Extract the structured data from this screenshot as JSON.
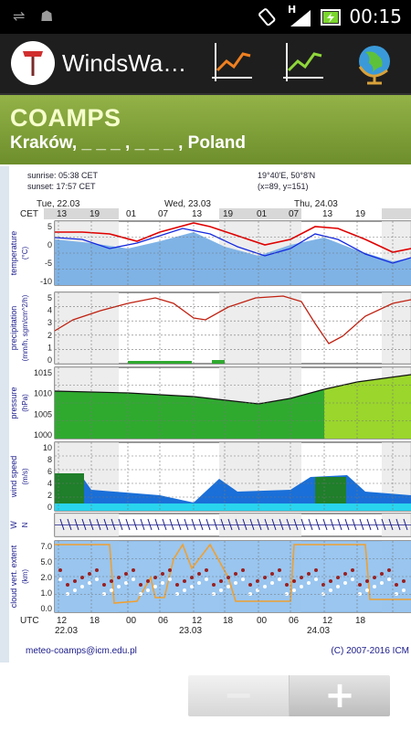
{
  "status_bar": {
    "time": "00:15",
    "network_label": "H"
  },
  "app_bar": {
    "title": "WindsWa…"
  },
  "header": {
    "model": "COAMPS",
    "location": "Kraków, _ _ _ , _ _ _ , Poland"
  },
  "meteogram": {
    "sunrise": "sunrise: 05:38 CET",
    "sunset": "sunset: 17:57 CET",
    "coords": "19°40'E, 50°8'N",
    "grid": "(x=89, y=151)",
    "days_top": [
      "Tue, 22.03",
      "Wed, 23.03",
      "Thu, 24.03"
    ],
    "cet_label": "CET",
    "hours_top": [
      "13",
      "19",
      "01",
      "07",
      "13",
      "19",
      "01",
      "07",
      "13",
      "19"
    ],
    "utc_label": "UTC",
    "hours_bottom": [
      "12",
      "18",
      "00",
      "06",
      "12",
      "18",
      "00",
      "06",
      "12",
      "18"
    ],
    "dates_bottom": [
      "22.03",
      "23.03",
      "24.03"
    ],
    "panels": [
      {
        "label1": "temperature",
        "label2": "(°C)",
        "ticks": [
          "5",
          "0",
          "-5",
          "-10"
        ]
      },
      {
        "label1": "precipitation",
        "label2": "(mm/h, sgm/cm^2/h)",
        "ticks": [
          "5",
          "4",
          "3",
          "2",
          "1",
          "0"
        ]
      },
      {
        "label1": "pressure",
        "label2": "(hPa)",
        "ticks": [
          "1015",
          "1010",
          "1005",
          "1000"
        ]
      },
      {
        "label1": "wind speed",
        "label2": "(m/s)",
        "ticks": [
          "10",
          "8",
          "6",
          "4",
          "2",
          "0"
        ]
      },
      {
        "label1": "W",
        "label2": "N",
        "ticks": []
      },
      {
        "label1": "cloud vert. extent",
        "label2": "(km)",
        "ticks": [
          "7.0",
          "5.0",
          "2.0",
          "1.0",
          "0.0"
        ]
      }
    ],
    "contact": "meteo-coamps@icm.edu.pl",
    "copyright": "(C) 2007-2016 ICM"
  },
  "zoom": {
    "out": "−",
    "in": "+"
  },
  "colors": {
    "header_green": "#7f9f36",
    "temperature_red": "#e00000",
    "temperature_blue": "#1428e0",
    "pressure_green": "#2faa2f",
    "wind_blue": "#1a6fd8",
    "cloud_orange": "#f0a030"
  }
}
